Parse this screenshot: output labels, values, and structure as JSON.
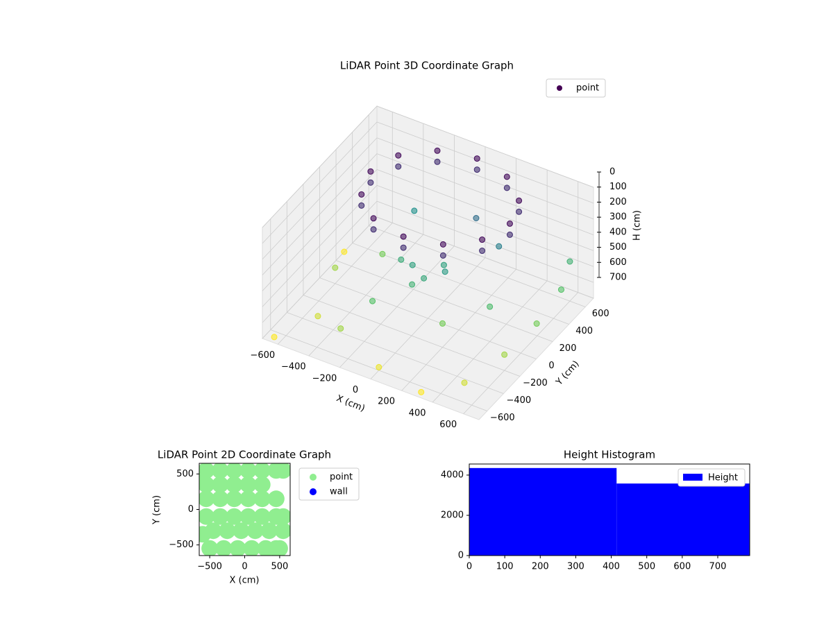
{
  "chart_data": [
    {
      "type": "scatter3d",
      "title": "LiDAR Point 3D Coordinate Graph",
      "xlabel": "X (cm)",
      "ylabel": "Y (cm)",
      "zlabel": "H (cm)",
      "colormap": "viridis",
      "legend": "upper right",
      "grid": true,
      "xlim": [
        -700,
        700
      ],
      "ylim": [
        -700,
        700
      ],
      "zlim": [
        700,
        0
      ],
      "xticks": [
        {
          "value": -600,
          "label": "−600"
        },
        {
          "value": -400,
          "label": "−400"
        },
        {
          "value": -200,
          "label": "−200"
        },
        0,
        200,
        400,
        600
      ],
      "yticks": [
        {
          "value": -600,
          "label": "−600"
        },
        {
          "value": -400,
          "label": "−400"
        },
        {
          "value": -200,
          "label": "−200"
        },
        0,
        200,
        400,
        600
      ],
      "zticks": [
        0,
        100,
        200,
        300,
        400,
        500,
        600,
        700
      ],
      "series": [
        {
          "name": "point",
          "color": "#440154",
          "x": [
            450,
            390,
            225,
            0,
            -225,
            -390,
            -450,
            -390,
            -225,
            0,
            225,
            390,
            450,
            390,
            225,
            0,
            -225,
            -390,
            -450,
            -390,
            -225,
            0,
            225,
            390,
            -100,
            0,
            100,
            -200,
            50,
            -50,
            -500,
            -300,
            0,
            300,
            500,
            600,
            650,
            650,
            600,
            -600,
            -400,
            -200,
            200,
            400,
            300,
            -300,
            100,
            -650,
            -700
          ],
          "y": [
            150,
            375,
            540,
            600,
            540,
            375,
            150,
            -75,
            -240,
            -300,
            -240,
            -75,
            150,
            375,
            540,
            600,
            540,
            375,
            150,
            -75,
            -240,
            -300,
            -240,
            -75,
            0,
            -50,
            20,
            50,
            100,
            -100,
            -400,
            -500,
            -600,
            -650,
            -500,
            -200,
            100,
            400,
            600,
            0,
            200,
            -300,
            -200,
            0,
            300,
            400,
            400,
            -650,
            300
          ],
          "h": [
            20,
            20,
            20,
            20,
            20,
            20,
            20,
            20,
            20,
            20,
            20,
            20,
            90,
            90,
            90,
            90,
            90,
            90,
            90,
            90,
            90,
            90,
            90,
            90,
            400,
            420,
            380,
            430,
            400,
            450,
            650,
            600,
            680,
            700,
            650,
            600,
            550,
            500,
            450,
            600,
            550,
            500,
            550,
            480,
            300,
            350,
            250,
            700,
            700
          ]
        }
      ]
    },
    {
      "type": "scatter",
      "title": "LiDAR Point 2D Coordinate Graph",
      "xlabel": "X (cm)",
      "ylabel": "Y (cm)",
      "legend": "outside right",
      "xlim": [
        -650,
        650
      ],
      "ylim": [
        -650,
        650
      ],
      "xticks": [
        {
          "value": -500,
          "label": "−500"
        },
        0,
        500
      ],
      "yticks": [
        {
          "value": -500,
          "label": "−500"
        },
        0,
        500
      ],
      "series": [
        {
          "name": "point",
          "color": "#90ee90",
          "x": [
            -550,
            -350,
            -150,
            50,
            250,
            450,
            -550,
            -350,
            -150,
            50,
            250,
            -550,
            -350,
            -150,
            50,
            250,
            450,
            -550,
            -350,
            -150,
            50,
            250,
            450,
            550,
            -450,
            -250,
            -50,
            150,
            350,
            550,
            -500,
            -300,
            -100,
            100,
            300,
            500,
            550,
            -600,
            -600,
            450
          ],
          "y": [
            550,
            550,
            550,
            550,
            550,
            550,
            350,
            350,
            350,
            350,
            350,
            150,
            150,
            150,
            150,
            150,
            150,
            -100,
            -100,
            -100,
            -100,
            -100,
            -100,
            -100,
            -300,
            -300,
            -300,
            -300,
            -300,
            -300,
            -550,
            -550,
            -550,
            -550,
            -550,
            -550,
            550,
            -350,
            400,
            -550
          ]
        },
        {
          "name": "wall",
          "color": "#0000ff",
          "x": [],
          "y": []
        }
      ]
    },
    {
      "type": "histogram",
      "title": "Height Histogram",
      "legend": "upper right",
      "bins": [
        0,
        415,
        790
      ],
      "counts": [
        4350,
        3580
      ],
      "series_name": "Height",
      "color": "#0000ff",
      "xlim": [
        0,
        790
      ],
      "ylim": [
        0,
        4550
      ],
      "xticks": [
        0,
        100,
        200,
        300,
        400,
        500,
        600,
        700
      ],
      "yticks": [
        0,
        2000,
        4000
      ]
    }
  ]
}
